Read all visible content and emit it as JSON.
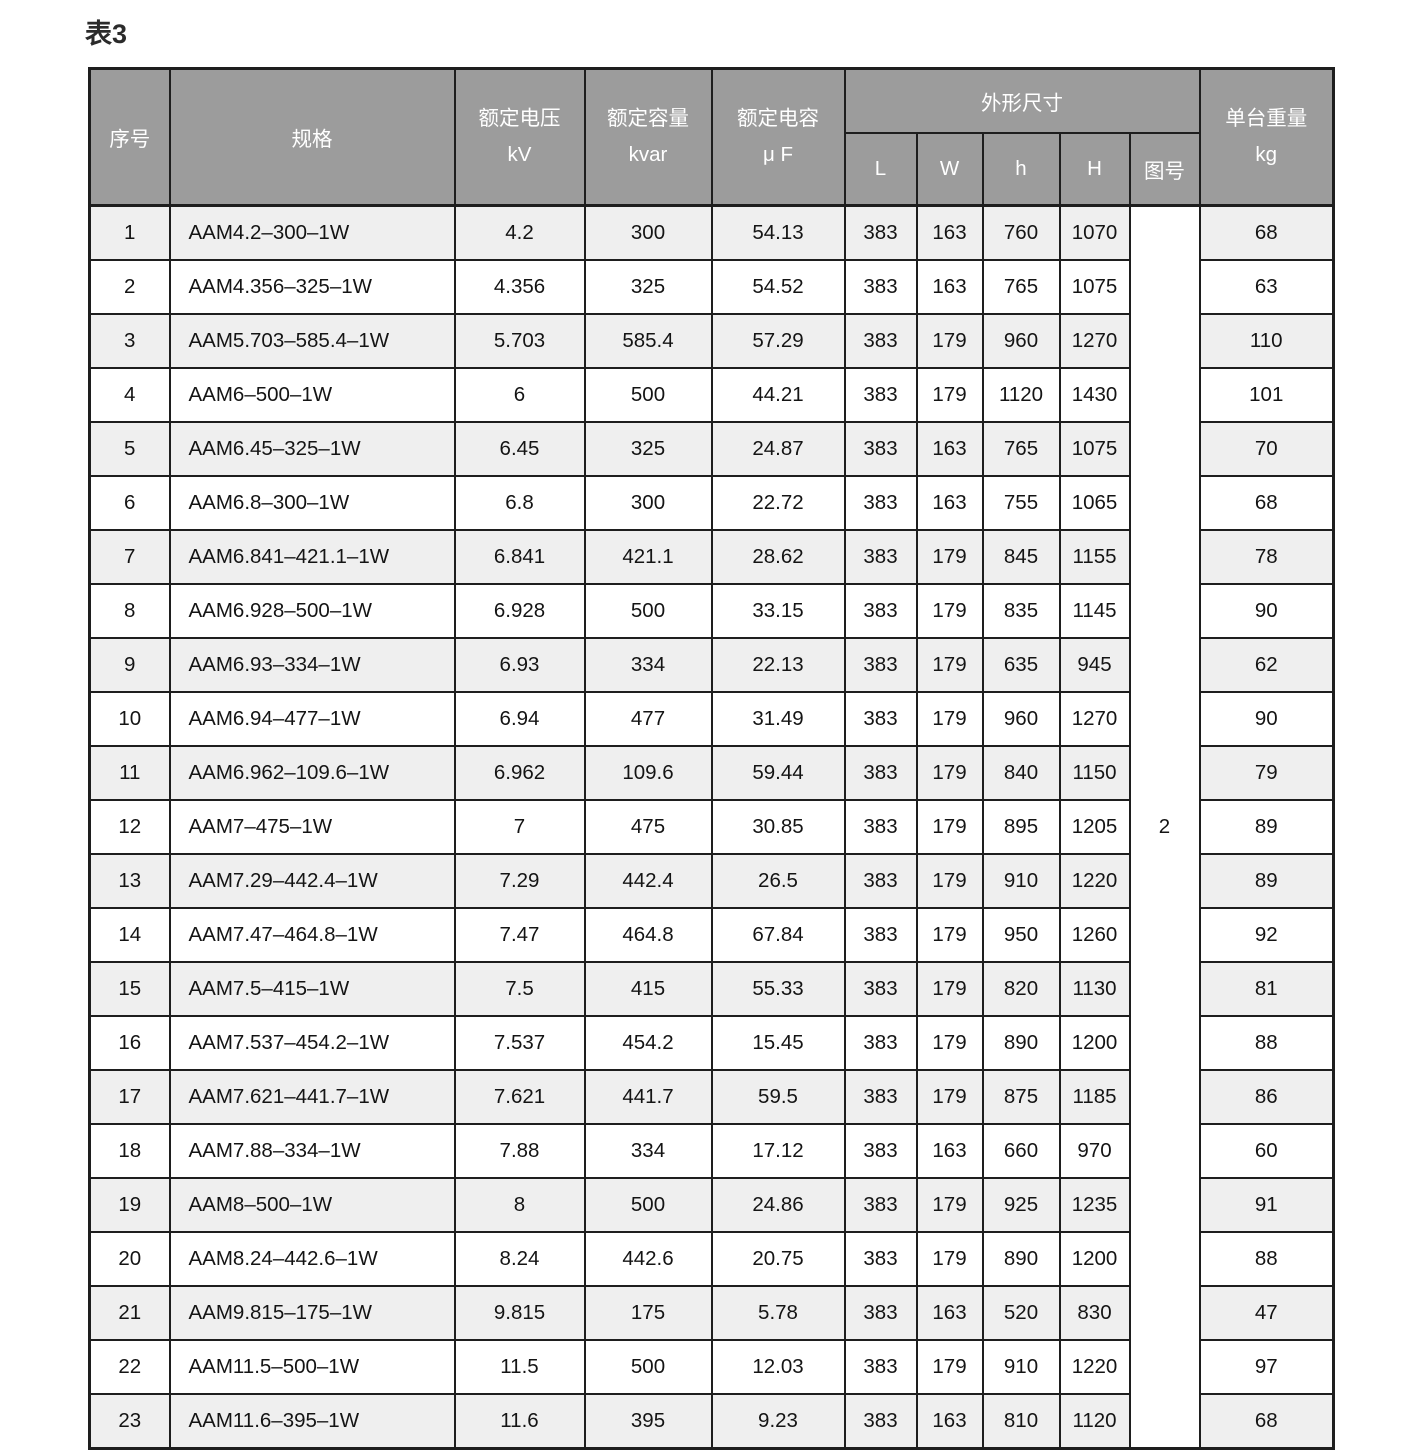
{
  "title": "表3",
  "theme": {
    "header-bg": "#9C9C9C",
    "header-text": "#FFFFFF",
    "row-alt-bg": "#EFEFEF",
    "row-bg": "#FFFFFF",
    "border-color": "#1E1E1E",
    "title-color": "#2B2B2B"
  },
  "table": {
    "headers": {
      "seq": "序号",
      "spec": "规格",
      "voltage": "额定电压",
      "voltage_unit": "kV",
      "capacity": "额定容量",
      "capacity_unit": "kvar",
      "capacitance": "额定电容",
      "capacitance_unit": "μ F",
      "dimensions": "外形尺寸",
      "dim_l": "L",
      "dim_w": "W",
      "dim_h_small": "h",
      "dim_h_big": "H",
      "drawing_no": "图号",
      "weight": "单台重量",
      "weight_unit": "kg"
    },
    "drawing_number": "2",
    "rows": [
      {
        "seq": "1",
        "spec": "AAM4.2–300–1W",
        "kv": "4.2",
        "kvar": "300",
        "uf": "54.13",
        "l": "383",
        "w": "163",
        "h": "760",
        "hh": "1070",
        "kg": "68"
      },
      {
        "seq": "2",
        "spec": "AAM4.356–325–1W",
        "kv": "4.356",
        "kvar": "325",
        "uf": "54.52",
        "l": "383",
        "w": "163",
        "h": "765",
        "hh": "1075",
        "kg": "63"
      },
      {
        "seq": "3",
        "spec": "AAM5.703–585.4–1W",
        "kv": "5.703",
        "kvar": "585.4",
        "uf": "57.29",
        "l": "383",
        "w": "179",
        "h": "960",
        "hh": "1270",
        "kg": "110"
      },
      {
        "seq": "4",
        "spec": "AAM6–500–1W",
        "kv": "6",
        "kvar": "500",
        "uf": "44.21",
        "l": "383",
        "w": "179",
        "h": "1120",
        "hh": "1430",
        "kg": "101"
      },
      {
        "seq": "5",
        "spec": "AAM6.45–325–1W",
        "kv": "6.45",
        "kvar": "325",
        "uf": "24.87",
        "l": "383",
        "w": "163",
        "h": "765",
        "hh": "1075",
        "kg": "70"
      },
      {
        "seq": "6",
        "spec": "AAM6.8–300–1W",
        "kv": "6.8",
        "kvar": "300",
        "uf": "22.72",
        "l": "383",
        "w": "163",
        "h": "755",
        "hh": "1065",
        "kg": "68"
      },
      {
        "seq": "7",
        "spec": "AAM6.841–421.1–1W",
        "kv": "6.841",
        "kvar": "421.1",
        "uf": "28.62",
        "l": "383",
        "w": "179",
        "h": "845",
        "hh": "1155",
        "kg": "78"
      },
      {
        "seq": "8",
        "spec": "AAM6.928–500–1W",
        "kv": "6.928",
        "kvar": "500",
        "uf": "33.15",
        "l": "383",
        "w": "179",
        "h": "835",
        "hh": "1145",
        "kg": "90"
      },
      {
        "seq": "9",
        "spec": "AAM6.93–334–1W",
        "kv": "6.93",
        "kvar": "334",
        "uf": "22.13",
        "l": "383",
        "w": "179",
        "h": "635",
        "hh": "945",
        "kg": "62"
      },
      {
        "seq": "10",
        "spec": "AAM6.94–477–1W",
        "kv": "6.94",
        "kvar": "477",
        "uf": "31.49",
        "l": "383",
        "w": "179",
        "h": "960",
        "hh": "1270",
        "kg": "90"
      },
      {
        "seq": "11",
        "spec": "AAM6.962–109.6–1W",
        "kv": "6.962",
        "kvar": "109.6",
        "uf": "59.44",
        "l": "383",
        "w": "179",
        "h": "840",
        "hh": "1150",
        "kg": "79"
      },
      {
        "seq": "12",
        "spec": "AAM7–475–1W",
        "kv": "7",
        "kvar": "475",
        "uf": "30.85",
        "l": "383",
        "w": "179",
        "h": "895",
        "hh": "1205",
        "kg": "89"
      },
      {
        "seq": "13",
        "spec": "AAM7.29–442.4–1W",
        "kv": "7.29",
        "kvar": "442.4",
        "uf": "26.5",
        "l": "383",
        "w": "179",
        "h": "910",
        "hh": "1220",
        "kg": "89"
      },
      {
        "seq": "14",
        "spec": "AAM7.47–464.8–1W",
        "kv": "7.47",
        "kvar": "464.8",
        "uf": "67.84",
        "l": "383",
        "w": "179",
        "h": "950",
        "hh": "1260",
        "kg": "92"
      },
      {
        "seq": "15",
        "spec": "AAM7.5–415–1W",
        "kv": "7.5",
        "kvar": "415",
        "uf": "55.33",
        "l": "383",
        "w": "179",
        "h": "820",
        "hh": "1130",
        "kg": "81"
      },
      {
        "seq": "16",
        "spec": "AAM7.537–454.2–1W",
        "kv": "7.537",
        "kvar": "454.2",
        "uf": "15.45",
        "l": "383",
        "w": "179",
        "h": "890",
        "hh": "1200",
        "kg": "88"
      },
      {
        "seq": "17",
        "spec": "AAM7.621–441.7–1W",
        "kv": "7.621",
        "kvar": "441.7",
        "uf": "59.5",
        "l": "383",
        "w": "179",
        "h": "875",
        "hh": "1185",
        "kg": "86"
      },
      {
        "seq": "18",
        "spec": "AAM7.88–334–1W",
        "kv": "7.88",
        "kvar": "334",
        "uf": "17.12",
        "l": "383",
        "w": "163",
        "h": "660",
        "hh": "970",
        "kg": "60"
      },
      {
        "seq": "19",
        "spec": "AAM8–500–1W",
        "kv": "8",
        "kvar": "500",
        "uf": "24.86",
        "l": "383",
        "w": "179",
        "h": "925",
        "hh": "1235",
        "kg": "91"
      },
      {
        "seq": "20",
        "spec": "AAM8.24–442.6–1W",
        "kv": "8.24",
        "kvar": "442.6",
        "uf": "20.75",
        "l": "383",
        "w": "179",
        "h": "890",
        "hh": "1200",
        "kg": "88"
      },
      {
        "seq": "21",
        "spec": "AAM9.815–175–1W",
        "kv": "9.815",
        "kvar": "175",
        "uf": "5.78",
        "l": "383",
        "w": "163",
        "h": "520",
        "hh": "830",
        "kg": "47"
      },
      {
        "seq": "22",
        "spec": "AAM11.5–500–1W",
        "kv": "11.5",
        "kvar": "500",
        "uf": "12.03",
        "l": "383",
        "w": "179",
        "h": "910",
        "hh": "1220",
        "kg": "97"
      },
      {
        "seq": "23",
        "spec": "AAM11.6–395–1W",
        "kv": "11.6",
        "kvar": "395",
        "uf": "9.23",
        "l": "383",
        "w": "163",
        "h": "810",
        "hh": "1120",
        "kg": "68"
      }
    ]
  }
}
